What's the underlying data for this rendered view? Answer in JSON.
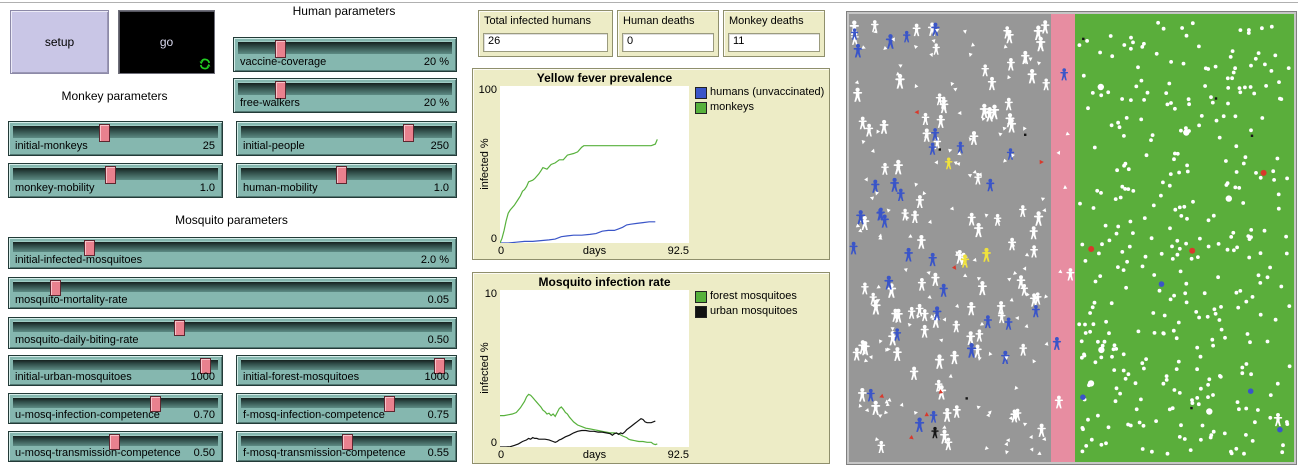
{
  "buttons": {
    "setup": "setup",
    "go": "go"
  },
  "sections": {
    "human": "Human parameters",
    "monkey": "Monkey parameters",
    "mosquito": "Mosquito parameters"
  },
  "sliders": [
    {
      "id": "vaccine-coverage",
      "label": "vaccine-coverage",
      "value": "20 %"
    },
    {
      "id": "free-walkers",
      "label": "free-walkers",
      "value": "20 %"
    },
    {
      "id": "initial-monkeys",
      "label": "initial-monkeys",
      "value": "25"
    },
    {
      "id": "initial-people",
      "label": "initial-people",
      "value": "250"
    },
    {
      "id": "monkey-mobility",
      "label": "monkey-mobility",
      "value": "1.0"
    },
    {
      "id": "human-mobility",
      "label": "human-mobility",
      "value": "1.0"
    },
    {
      "id": "initial-infected-mosquitoes",
      "label": "initial-infected-mosquitoes",
      "value": "2.0 %"
    },
    {
      "id": "mosquito-mortality-rate",
      "label": "mosquito-mortality-rate",
      "value": "0.05"
    },
    {
      "id": "mosquito-daily-biting-rate",
      "label": "mosquito-daily-biting-rate",
      "value": "0.50"
    },
    {
      "id": "initial-urban-mosquitoes",
      "label": "initial-urban-mosquitoes",
      "value": "1000"
    },
    {
      "id": "initial-forest-mosquitoes",
      "label": "initial-forest-mosquitoes",
      "value": "1000"
    },
    {
      "id": "u-mosq-infection-competence",
      "label": "u-mosq-infection-competence",
      "value": "0.70"
    },
    {
      "id": "f-mosq-infection-competence",
      "label": "f-mosq-infection-competence",
      "value": "0.75"
    },
    {
      "id": "u-mosq-transmission-competence",
      "label": "u-mosq-transmission-competence",
      "value": "0.50"
    },
    {
      "id": "f-mosq-transmission-competence",
      "label": "f-mosq-transmission-competence",
      "value": "0.55"
    }
  ],
  "monitors": [
    {
      "label": "Total infected humans",
      "value": "26"
    },
    {
      "label": "Human deaths",
      "value": "0"
    },
    {
      "label": "Monkey deaths",
      "value": "11"
    }
  ],
  "chart_data": [
    {
      "type": "line",
      "title": "Yellow fever prevalence",
      "xlabel": "days",
      "ylabel": "infected %",
      "xlim": [
        0,
        92.5
      ],
      "ylim": [
        0,
        100
      ],
      "xticks": [
        "0",
        "92.5"
      ],
      "yticks": [
        "0",
        "100"
      ],
      "grid": false,
      "legend_position": "right",
      "series": [
        {
          "name": "humans (unvaccinated)",
          "color": "#3A55C8",
          "points": [
            [
              0,
              0
            ],
            [
              4,
              0
            ],
            [
              8,
              0.5
            ],
            [
              12,
              1
            ],
            [
              16,
              1
            ],
            [
              20,
              1.5
            ],
            [
              24,
              2
            ],
            [
              27,
              2.5
            ],
            [
              30,
              4
            ],
            [
              33,
              4.5
            ],
            [
              36,
              5
            ],
            [
              40,
              5
            ],
            [
              44,
              5.5
            ],
            [
              47,
              6
            ],
            [
              50,
              7.5
            ],
            [
              53,
              8
            ],
            [
              56,
              8
            ],
            [
              58,
              9
            ],
            [
              60,
              10
            ],
            [
              62,
              11.5
            ],
            [
              64,
              12
            ],
            [
              67,
              12.5
            ],
            [
              70,
              13
            ],
            [
              73,
              13.5
            ],
            [
              76,
              13.5
            ]
          ]
        },
        {
          "name": "monkeys",
          "color": "#57B13C",
          "points": [
            [
              0,
              0
            ],
            [
              1,
              3
            ],
            [
              2,
              8
            ],
            [
              3,
              14
            ],
            [
              4,
              19
            ],
            [
              5,
              21
            ],
            [
              7,
              24
            ],
            [
              9,
              28
            ],
            [
              10,
              30
            ],
            [
              11,
              33
            ],
            [
              12,
              34
            ],
            [
              13,
              36
            ],
            [
              14,
              39
            ],
            [
              16,
              40
            ],
            [
              17,
              41
            ],
            [
              19,
              44
            ],
            [
              20,
              46
            ],
            [
              21,
              48
            ],
            [
              23,
              47
            ],
            [
              25,
              50
            ],
            [
              27,
              51
            ],
            [
              29,
              53
            ],
            [
              31,
              53
            ],
            [
              33,
              56
            ],
            [
              36,
              57
            ],
            [
              38,
              58
            ],
            [
              40,
              61
            ],
            [
              41,
              62
            ],
            [
              44,
              62
            ],
            [
              50,
              62
            ],
            [
              56,
              62
            ],
            [
              62,
              62
            ],
            [
              68,
              62
            ],
            [
              74,
              62
            ],
            [
              76,
              63
            ],
            [
              77,
              66
            ]
          ]
        }
      ]
    },
    {
      "type": "line",
      "title": "Mosquito infection rate",
      "xlabel": "days",
      "ylabel": "infected %",
      "xlim": [
        0,
        92.5
      ],
      "ylim": [
        0,
        10
      ],
      "xticks": [
        "0",
        "92.5"
      ],
      "yticks": [
        "0",
        "10"
      ],
      "grid": false,
      "legend_position": "right",
      "series": [
        {
          "name": "forest mosquitoes",
          "color": "#57B13C",
          "points": [
            [
              0,
              2.0
            ],
            [
              2,
              2.0
            ],
            [
              4,
              2.05
            ],
            [
              6,
              2.1
            ],
            [
              8,
              2.2
            ],
            [
              10,
              2.5
            ],
            [
              12,
              2.9
            ],
            [
              13,
              3.2
            ],
            [
              14,
              3.35
            ],
            [
              15,
              3.3
            ],
            [
              16,
              3.15
            ],
            [
              17,
              3.0
            ],
            [
              18,
              2.85
            ],
            [
              19,
              2.7
            ],
            [
              20,
              2.55
            ],
            [
              21,
              2.35
            ],
            [
              22,
              2.25
            ],
            [
              23,
              2.1
            ],
            [
              24,
              2.15
            ],
            [
              25,
              2.0
            ],
            [
              26,
              2.1
            ],
            [
              27,
              1.95
            ],
            [
              28,
              2.2
            ],
            [
              29,
              2.45
            ],
            [
              30,
              2.55
            ],
            [
              31,
              2.4
            ],
            [
              32,
              2.2
            ],
            [
              33,
              2.1
            ],
            [
              34,
              1.9
            ],
            [
              35,
              1.75
            ],
            [
              36,
              1.6
            ],
            [
              38,
              1.4
            ],
            [
              40,
              1.3
            ],
            [
              42,
              1.2
            ],
            [
              44,
              1.15
            ],
            [
              46,
              1.1
            ],
            [
              48,
              1.05
            ],
            [
              50,
              1.0
            ],
            [
              52,
              0.95
            ],
            [
              54,
              0.9
            ],
            [
              56,
              0.9
            ],
            [
              58,
              0.85
            ],
            [
              60,
              0.7
            ],
            [
              62,
              0.6
            ],
            [
              63,
              0.5
            ],
            [
              64,
              0.45
            ],
            [
              66,
              0.4
            ],
            [
              68,
              0.35
            ],
            [
              70,
              0.35
            ],
            [
              72,
              0.3
            ],
            [
              74,
              0.3
            ],
            [
              75,
              0.2
            ],
            [
              76,
              0.15
            ],
            [
              77,
              0.2
            ]
          ]
        },
        {
          "name": "urban mosquitoes",
          "color": "#111111",
          "points": [
            [
              0,
              0
            ],
            [
              3,
              0
            ],
            [
              5,
              0.02
            ],
            [
              7,
              0.1
            ],
            [
              9,
              0.2
            ],
            [
              11,
              0.35
            ],
            [
              13,
              0.45
            ],
            [
              14,
              0.55
            ],
            [
              15,
              0.5
            ],
            [
              16,
              0.6
            ],
            [
              17,
              0.55
            ],
            [
              18,
              0.55
            ],
            [
              19,
              0.5
            ],
            [
              20,
              0.5
            ],
            [
              22,
              0.5
            ],
            [
              24,
              0.45
            ],
            [
              26,
              0.35
            ],
            [
              27,
              0.3
            ],
            [
              28,
              0.35
            ],
            [
              29,
              0.45
            ],
            [
              30,
              0.5
            ],
            [
              32,
              0.65
            ],
            [
              34,
              0.75
            ],
            [
              36,
              0.9
            ],
            [
              38,
              1.0
            ],
            [
              40,
              1.05
            ],
            [
              42,
              1.05
            ],
            [
              44,
              1.0
            ],
            [
              46,
              1.0
            ],
            [
              48,
              0.95
            ],
            [
              50,
              0.95
            ],
            [
              52,
              0.9
            ],
            [
              54,
              0.85
            ],
            [
              55,
              0.75
            ],
            [
              56,
              0.85
            ],
            [
              57,
              0.9
            ],
            [
              58,
              0.8
            ],
            [
              59,
              0.9
            ],
            [
              60,
              0.85
            ],
            [
              61,
              0.95
            ],
            [
              62,
              1.1
            ],
            [
              64,
              1.3
            ],
            [
              66,
              1.5
            ],
            [
              68,
              1.7
            ],
            [
              69,
              1.8
            ],
            [
              70,
              1.75
            ],
            [
              71,
              1.6
            ],
            [
              72,
              1.55
            ],
            [
              74,
              1.55
            ],
            [
              76,
              1.65
            ]
          ]
        }
      ]
    }
  ],
  "world": {
    "regions": [
      {
        "name": "urban",
        "color": "#979797"
      },
      {
        "name": "corridor",
        "color": "#E78DA1"
      },
      {
        "name": "forest",
        "color": "#5AAE3B"
      }
    ],
    "agent_colors": {
      "white": "#ffffff",
      "blue": "#3A55C8",
      "yellow": "#F0E23C",
      "black": "#161616",
      "red": "#D8392C"
    },
    "agents": {
      "urban": {
        "white_people": 100,
        "blue_people": 32,
        "yellow_people": 3,
        "black_people": 1,
        "white_mosquitoes": 125,
        "red_mosquitoes": 7,
        "black_specks": 3
      },
      "corridor": {
        "white_people": 2,
        "blue_people": 2,
        "white_mosquitoes": 4
      },
      "forest": {
        "white_mosquitoes": 355,
        "white_monkeys": 6,
        "blue_monkeys": 4,
        "red_monkeys": 3,
        "black_specks": 4,
        "white_people": 1
      }
    }
  },
  "colors": {
    "slider_body": "#85B7AF",
    "slider_channel": "#3C5F5A",
    "slider_handle": "#E9818E",
    "panel_tan": "#EDECC6",
    "setup_button_bg": "#C9C6E6",
    "go_button_bg": "#000000",
    "go_icon_green": "#22CC22"
  }
}
